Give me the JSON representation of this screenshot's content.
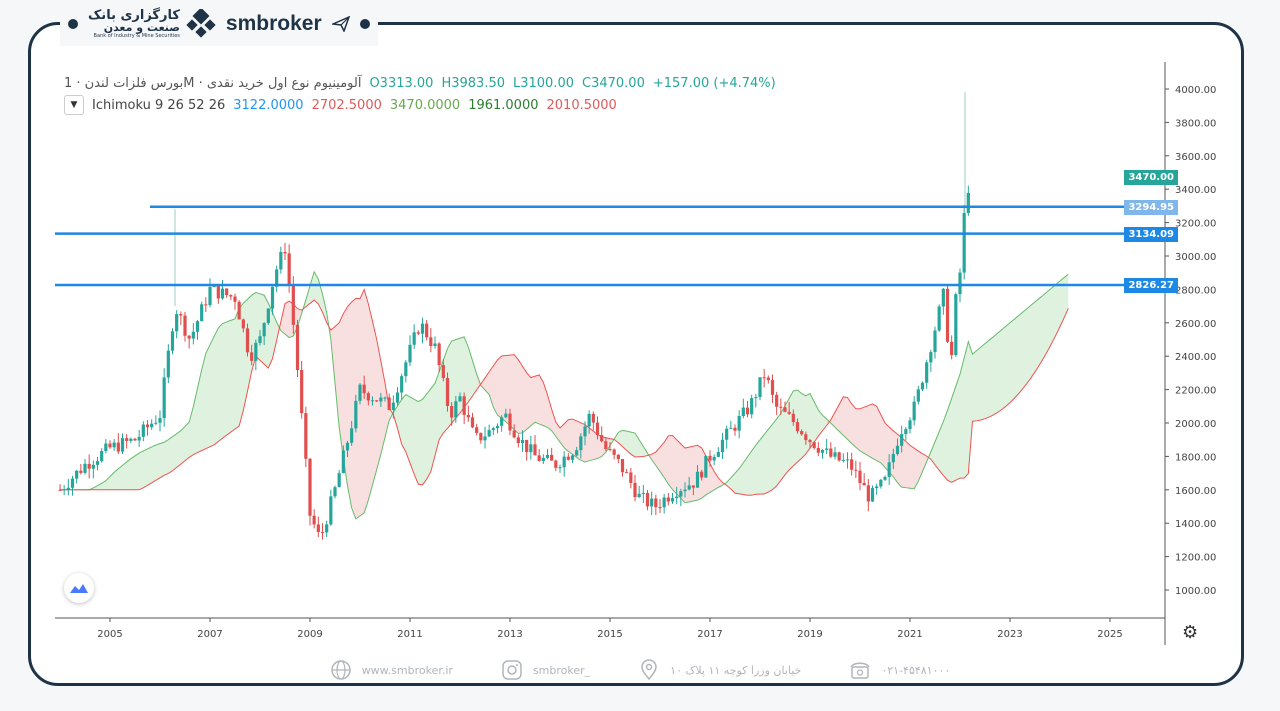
{
  "brand": {
    "bank_line1": "کارگزاری بانک",
    "bank_line2": "صنعت و معدن",
    "bank_en": "Bank of Industry & Mine Securities",
    "name": "smbroker"
  },
  "legend": {
    "title": "بورس فلزات لندن · 1M · آلومینیوم نوع اول خرید نقدی",
    "o": "O3313.00",
    "h": "H3983.50",
    "l": "L3100.00",
    "c": "C3470.00",
    "change": "+157.00 (+4.74%)",
    "indicator": "Ichimoku 9 26 52 26",
    "ind_values": [
      "3122.0000",
      "2702.5000",
      "3470.0000",
      "1961.0000",
      "2010.5000"
    ]
  },
  "price_tags": {
    "last": "3470.00",
    "line1": "3294.95",
    "line2": "3134.09",
    "line3": "2826.27"
  },
  "footer": {
    "website": "www.smbroker.ir",
    "instagram": "smbroker_",
    "address": "خیابان وزرا کوچه ۱۱ پلاک ۱۰",
    "phone": "۰۲۱-۴۵۴۸۱۰۰۰"
  },
  "colors": {
    "up": "#26a69a",
    "down": "#e04e4e",
    "level": "#1e88e5",
    "accent": "#1f3346"
  },
  "chart_data": {
    "type": "candlestick",
    "interval": "1M",
    "ylim": [
      1000,
      4000
    ],
    "y_ticks": [
      "4000.00",
      "3800.00",
      "3600.00",
      "3400.00",
      "3200.00",
      "3000.00",
      "2800.00",
      "2600.00",
      "2400.00",
      "2200.00",
      "2000.00",
      "1800.00",
      "1600.00",
      "1400.00",
      "1200.00",
      "1000.00"
    ],
    "x_ticks": [
      "2005",
      "2007",
      "2009",
      "2011",
      "2013",
      "2015",
      "2017",
      "2019",
      "2021",
      "2023",
      "2025"
    ],
    "xlim": [
      2004.0,
      2026.0
    ],
    "price": [
      [
        2004.0,
        1600
      ],
      [
        2004.5,
        1750
      ],
      [
        2005.0,
        1850
      ],
      [
        2005.5,
        1900
      ],
      [
        2006.0,
        2050
      ],
      [
        2006.3,
        2700
      ],
      [
        2006.6,
        2500
      ],
      [
        2007.0,
        2800
      ],
      [
        2007.5,
        2750
      ],
      [
        2007.8,
        2400
      ],
      [
        2008.0,
        2500
      ],
      [
        2008.3,
        2900
      ],
      [
        2008.5,
        3050
      ],
      [
        2008.7,
        2500
      ],
      [
        2009.0,
        1450
      ],
      [
        2009.2,
        1300
      ],
      [
        2009.5,
        1600
      ],
      [
        2009.8,
        1950
      ],
      [
        2010.0,
        2200
      ],
      [
        2010.3,
        2150
      ],
      [
        2010.6,
        2100
      ],
      [
        2010.9,
        2350
      ],
      [
        2011.2,
        2600
      ],
      [
        2011.5,
        2450
      ],
      [
        2011.8,
        2050
      ],
      [
        2012.0,
        2150
      ],
      [
        2012.3,
        1900
      ],
      [
        2012.6,
        1950
      ],
      [
        2012.9,
        2050
      ],
      [
        2013.2,
        1900
      ],
      [
        2013.5,
        1800
      ],
      [
        2013.9,
        1750
      ],
      [
        2014.3,
        1850
      ],
      [
        2014.6,
        2050
      ],
      [
        2014.9,
        1850
      ],
      [
        2015.2,
        1750
      ],
      [
        2015.6,
        1550
      ],
      [
        2015.9,
        1500
      ],
      [
        2016.3,
        1600
      ],
      [
        2016.7,
        1650
      ],
      [
        2017.0,
        1800
      ],
      [
        2017.4,
        1950
      ],
      [
        2017.8,
        2100
      ],
      [
        2018.1,
        2300
      ],
      [
        2018.3,
        2100
      ],
      [
        2018.7,
        2000
      ],
      [
        2019.0,
        1900
      ],
      [
        2019.4,
        1800
      ],
      [
        2019.8,
        1750
      ],
      [
        2020.2,
        1550
      ],
      [
        2020.5,
        1650
      ],
      [
        2020.8,
        1950
      ],
      [
        2021.1,
        2100
      ],
      [
        2021.4,
        2450
      ],
      [
        2021.7,
        2800
      ],
      [
        2021.8,
        2250
      ],
      [
        2021.9,
        2700
      ],
      [
        2022.0,
        2900
      ],
      [
        2022.1,
        3300
      ],
      [
        2022.2,
        3470
      ]
    ],
    "horizontal_levels": [
      3294.95,
      3134.09,
      2826.27
    ],
    "cloud_projection_end": [
      2024.2,
      2900
    ]
  }
}
